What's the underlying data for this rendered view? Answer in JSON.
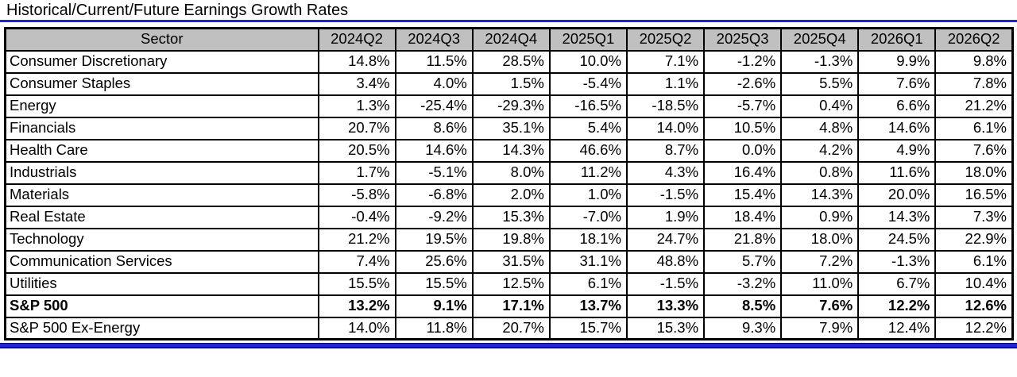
{
  "title": "Historical/Current/Future Earnings Growth Rates",
  "colors": {
    "accent_blue": "#2121d4",
    "rule_dark": "#000080",
    "header_bg": "#c0c0c0",
    "border_black": "#000000"
  },
  "table": {
    "header": [
      "Sector",
      "2024Q2",
      "2024Q3",
      "2024Q4",
      "2025Q1",
      "2025Q2",
      "2025Q3",
      "2025Q4",
      "2026Q1",
      "2026Q2"
    ],
    "rows": [
      {
        "sector": "Consumer Discretionary",
        "bold": false,
        "values": [
          "14.8%",
          "11.5%",
          "28.5%",
          "10.0%",
          "7.1%",
          "-1.2%",
          "-1.3%",
          "9.9%",
          "9.8%"
        ]
      },
      {
        "sector": "Consumer Staples",
        "bold": false,
        "values": [
          "3.4%",
          "4.0%",
          "1.5%",
          "-5.4%",
          "1.1%",
          "-2.6%",
          "5.5%",
          "7.6%",
          "7.8%"
        ]
      },
      {
        "sector": "Energy",
        "bold": false,
        "values": [
          "1.3%",
          "-25.4%",
          "-29.3%",
          "-16.5%",
          "-18.5%",
          "-5.7%",
          "0.4%",
          "6.6%",
          "21.2%"
        ]
      },
      {
        "sector": "Financials",
        "bold": false,
        "values": [
          "20.7%",
          "8.6%",
          "35.1%",
          "5.4%",
          "14.0%",
          "10.5%",
          "4.8%",
          "14.6%",
          "6.1%"
        ]
      },
      {
        "sector": "Health Care",
        "bold": false,
        "values": [
          "20.5%",
          "14.6%",
          "14.3%",
          "46.6%",
          "8.7%",
          "0.0%",
          "4.2%",
          "4.9%",
          "7.6%"
        ]
      },
      {
        "sector": "Industrials",
        "bold": false,
        "values": [
          "1.7%",
          "-5.1%",
          "8.0%",
          "11.2%",
          "4.3%",
          "16.4%",
          "0.8%",
          "11.6%",
          "18.0%"
        ]
      },
      {
        "sector": "Materials",
        "bold": false,
        "values": [
          "-5.8%",
          "-6.8%",
          "2.0%",
          "1.0%",
          "-1.5%",
          "15.4%",
          "14.3%",
          "20.0%",
          "16.5%"
        ]
      },
      {
        "sector": "Real Estate",
        "bold": false,
        "values": [
          "-0.4%",
          "-9.2%",
          "15.3%",
          "-7.0%",
          "1.9%",
          "18.4%",
          "0.9%",
          "14.3%",
          "7.3%"
        ]
      },
      {
        "sector": "Technology",
        "bold": false,
        "values": [
          "21.2%",
          "19.5%",
          "19.8%",
          "18.1%",
          "24.7%",
          "21.8%",
          "18.0%",
          "24.5%",
          "22.9%"
        ]
      },
      {
        "sector": "Communication Services",
        "bold": false,
        "values": [
          "7.4%",
          "25.6%",
          "31.5%",
          "31.1%",
          "48.8%",
          "5.7%",
          "7.2%",
          "-1.3%",
          "6.1%"
        ]
      },
      {
        "sector": "Utilities",
        "bold": false,
        "values": [
          "15.5%",
          "15.5%",
          "12.5%",
          "6.1%",
          "-1.5%",
          "-3.2%",
          "11.0%",
          "6.7%",
          "10.4%"
        ]
      },
      {
        "sector": "S&P 500",
        "bold": true,
        "values": [
          "13.2%",
          "9.1%",
          "17.1%",
          "13.7%",
          "13.3%",
          "8.5%",
          "7.6%",
          "12.2%",
          "12.6%"
        ]
      },
      {
        "sector": "S&P 500 Ex-Energy",
        "bold": false,
        "values": [
          "14.0%",
          "11.8%",
          "20.7%",
          "15.7%",
          "15.3%",
          "9.3%",
          "7.9%",
          "12.4%",
          "12.2%"
        ]
      }
    ]
  }
}
